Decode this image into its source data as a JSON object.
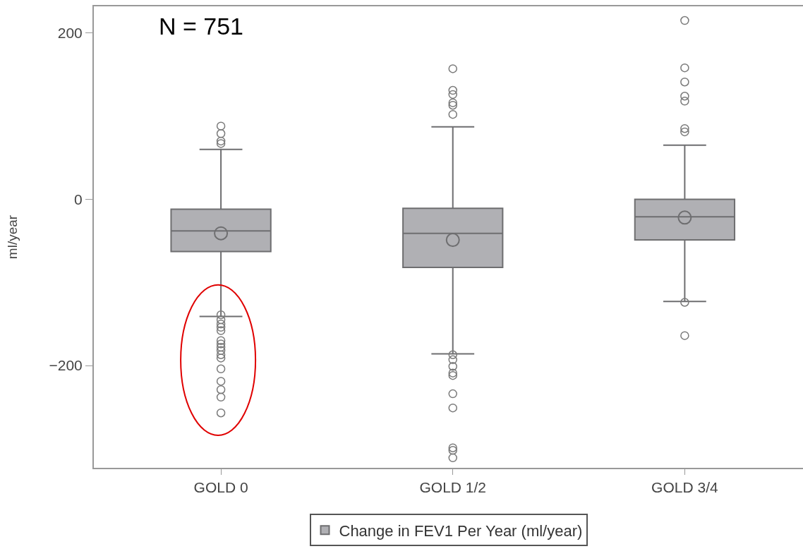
{
  "chart_data": {
    "type": "box",
    "categories": [
      "GOLD 0",
      "GOLD 1/2",
      "GOLD 3/4"
    ],
    "ylabel": "ml/year",
    "ylim": [
      -323,
      232
    ],
    "yticks": [
      -200,
      0,
      200
    ],
    "annotations": [
      "N = 751"
    ],
    "legend": "bottom",
    "grid": false,
    "marker": "circle",
    "series": [
      {
        "name": "Change in FEV1 Per Year (ml/year)",
        "color": "#b0b0b4",
        "boxes": [
          {
            "low": -141,
            "q1": -63,
            "median": -38,
            "q3": -12,
            "high": 60,
            "mean": -41,
            "outliers": [
              88,
              79,
              70,
              67,
              -139,
              -145,
              -150,
              -154,
              -158,
              -170,
              -174,
              -178,
              -182,
              -187,
              -191,
              -204,
              -219,
              -229,
              -238,
              -257
            ]
          },
          {
            "low": -186,
            "q1": -82,
            "median": -41,
            "q3": -11,
            "high": 87,
            "mean": -49,
            "outliers": [
              157,
              131,
              126,
              116,
              113,
              102,
              -187,
              -193,
              -201,
              -209,
              -212,
              -234,
              -251,
              -299,
              -302,
              -311
            ]
          },
          {
            "low": -123,
            "q1": -49,
            "median": -21,
            "q3": 0,
            "high": 65,
            "mean": -22,
            "outliers": [
              215,
              158,
              141,
              124,
              118,
              85,
              81,
              -124,
              -164
            ]
          }
        ]
      }
    ]
  }
}
